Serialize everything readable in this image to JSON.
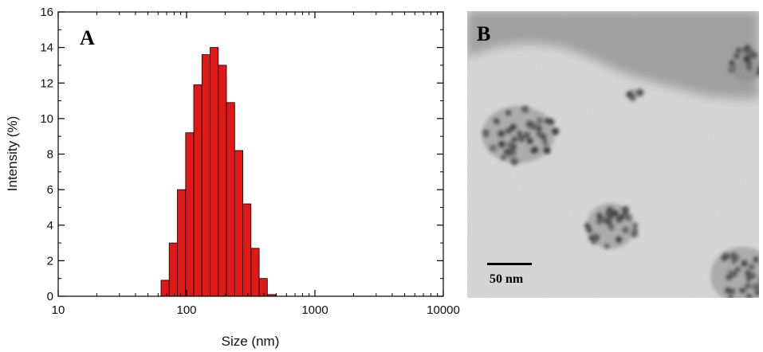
{
  "chart_data": {
    "type": "bar",
    "panel_label": "A",
    "xlabel": "Size (nm)",
    "ylabel": "Intensity (%)",
    "x_scale": "log",
    "xlim": [
      10,
      10000
    ],
    "ylim": [
      0,
      16
    ],
    "x_ticks": [
      "10",
      "100",
      "1000",
      "10000"
    ],
    "y_ticks": [
      "0",
      "2",
      "4",
      "6",
      "8",
      "10",
      "12",
      "14",
      "16"
    ],
    "bar_color": "#e01818",
    "bins": [
      {
        "size": 68.1,
        "value": 0.9
      },
      {
        "size": 78.8,
        "value": 3.0
      },
      {
        "size": 91.3,
        "value": 6.0
      },
      {
        "size": 105.7,
        "value": 9.2
      },
      {
        "size": 122.4,
        "value": 11.9
      },
      {
        "size": 141.8,
        "value": 13.6
      },
      {
        "size": 164.2,
        "value": 14.0
      },
      {
        "size": 190.1,
        "value": 13.0
      },
      {
        "size": 220.2,
        "value": 10.9
      },
      {
        "size": 255.0,
        "value": 8.2
      },
      {
        "size": 295.3,
        "value": 5.2
      },
      {
        "size": 342.0,
        "value": 2.7
      },
      {
        "size": 396.1,
        "value": 1.0
      },
      {
        "size": 458.7,
        "value": 0.1
      }
    ],
    "grid": false,
    "legend": "none"
  },
  "tem_image": {
    "panel_label": "B",
    "scale_bar_label": "50 nm"
  }
}
